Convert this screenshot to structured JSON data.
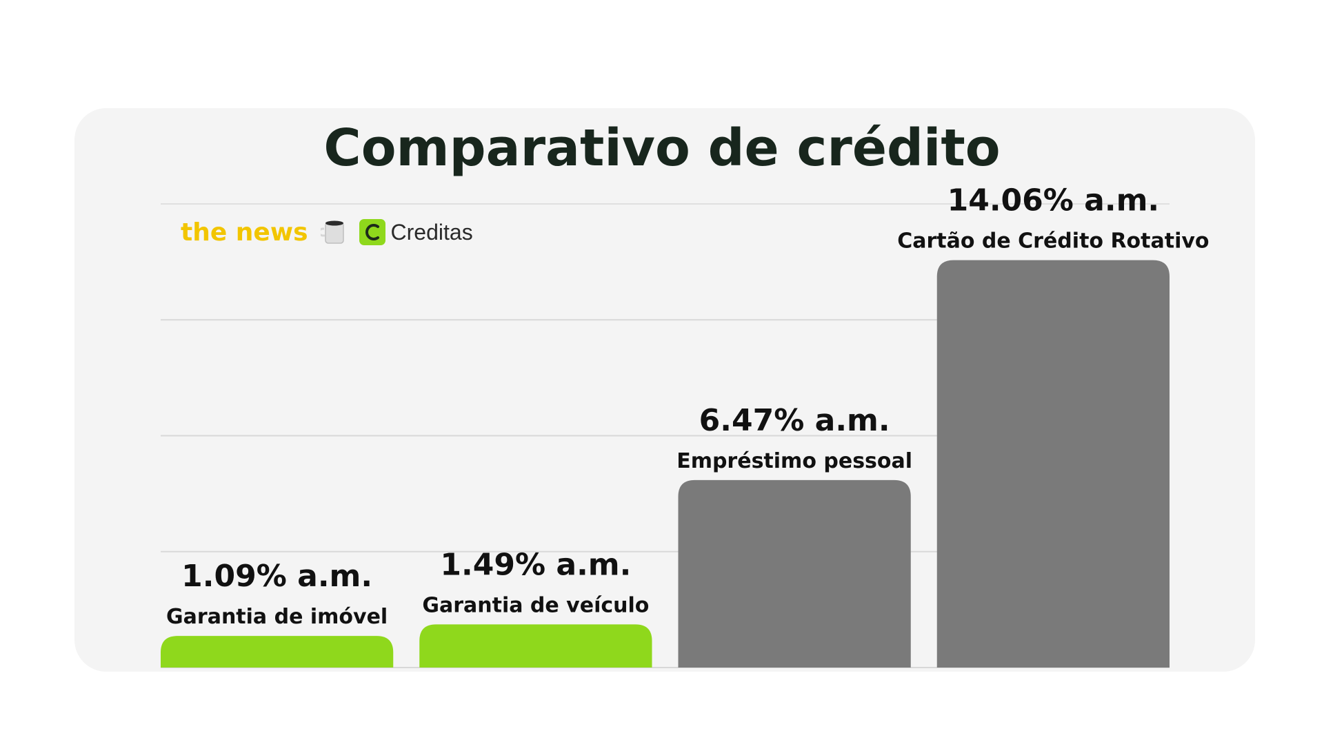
{
  "header": {
    "title": "Comparativo de crédito"
  },
  "brand": {
    "news_text": "the news",
    "mug_icon": "coffee-mug-icon",
    "creditas_icon": "creditas-logo-icon",
    "creditas_text": "Creditas"
  },
  "colors": {
    "accent_green": "#8fd81c",
    "bar_gray": "#7a7a7a",
    "title": "#18261d",
    "news_yellow": "#f2c500"
  },
  "chart_data": {
    "type": "bar",
    "title": "Comparativo de crédito",
    "xlabel": "",
    "ylabel": "",
    "ylim": [
      0,
      16
    ],
    "grid": true,
    "categories": [
      "Garantia de imóvel",
      "Garantia de veículo",
      "Empréstimo pessoal",
      "Cartão de Crédito Rotativo"
    ],
    "values": [
      1.09,
      1.49,
      6.47,
      14.06
    ],
    "value_labels": [
      "1.09% a.m.",
      "1.49% a.m.",
      "6.47% a.m.",
      "14.06% a.m."
    ],
    "bar_colors": [
      "#8fd81c",
      "#8fd81c",
      "#7a7a7a",
      "#7a7a7a"
    ]
  }
}
